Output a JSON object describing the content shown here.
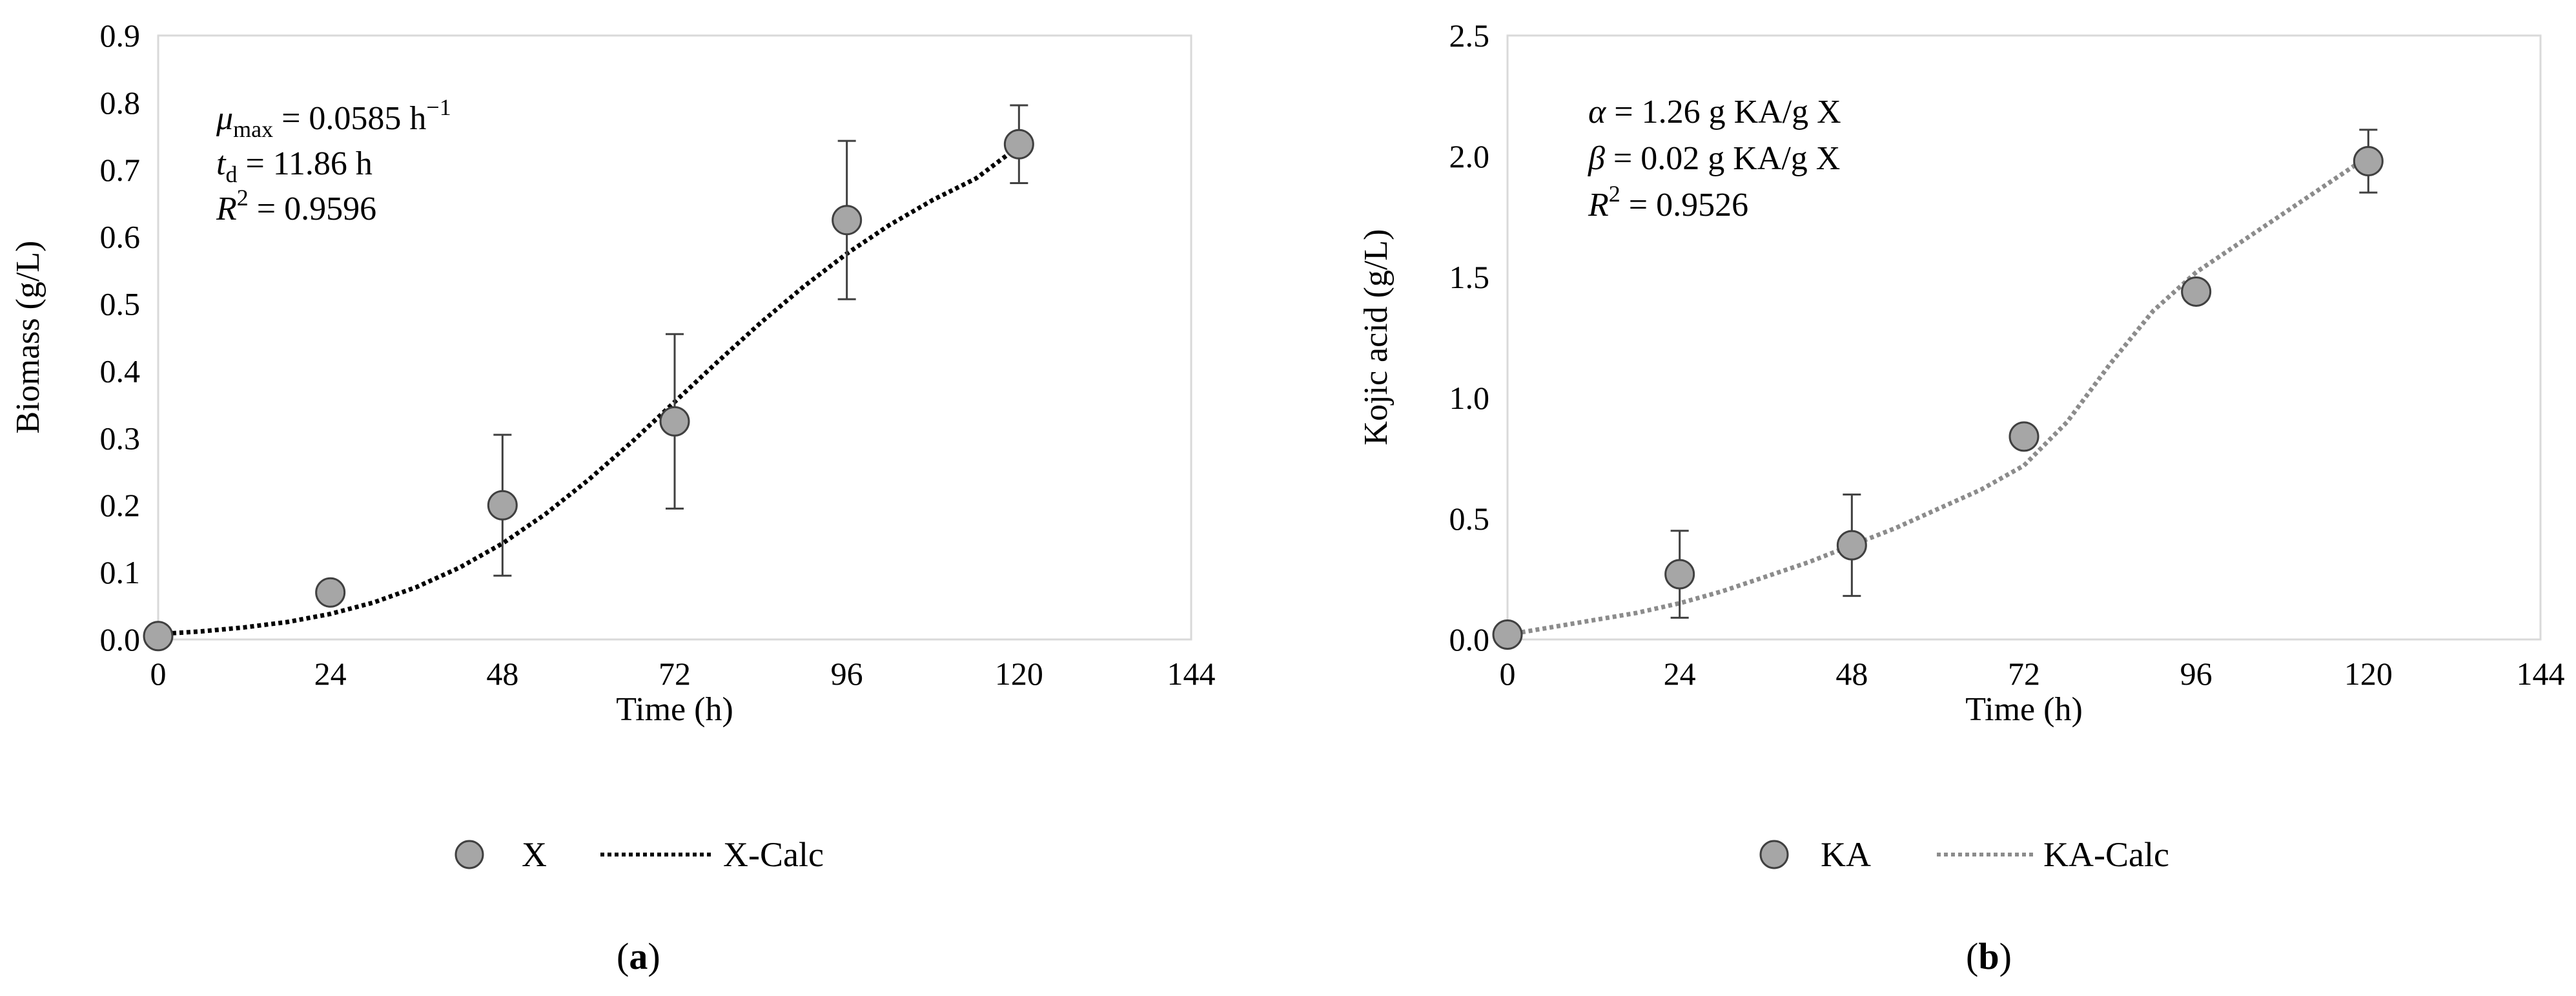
{
  "chart_data": [
    {
      "panel_label": "a",
      "type": "scatter",
      "xlabel": "Time (h)",
      "ylabel": "Biomass (g/L)",
      "xlim": [
        0,
        144
      ],
      "ylim": [
        0,
        0.9
      ],
      "xticks": [
        "0",
        "24",
        "48",
        "72",
        "96",
        "120",
        "144"
      ],
      "yticks": [
        "0.0",
        "0.1",
        "0.2",
        "0.3",
        "0.4",
        "0.5",
        "0.6",
        "0.7",
        "0.8",
        "0.9"
      ],
      "grid": false,
      "legend_position": "bottom",
      "annotations": {
        "line1_base": "μ",
        "line1_sub": "max",
        "line1_rest": " = 0.0585 h",
        "line1_sup": "−1",
        "line2_base": "t",
        "line2_sub": "d",
        "line2_rest": " = 11.86 h",
        "line3_base": "R",
        "line3_sup": "2",
        "line3_rest": " = 0.9596"
      },
      "series": [
        {
          "name": "X",
          "kind": "points",
          "color": "#a6a6a6",
          "x": [
            0,
            24,
            48,
            72,
            96,
            120
          ],
          "y": [
            0.005,
            0.07,
            0.2,
            0.325,
            0.625,
            0.738
          ],
          "err": [
            0,
            0,
            0.105,
            0.13,
            0.118,
            0.058
          ]
        },
        {
          "name": "X-Calc",
          "kind": "dotted-line",
          "color": "#000000",
          "x": [
            0,
            6,
            12,
            18,
            24,
            30,
            36,
            42,
            48,
            54,
            60,
            66,
            72,
            78,
            84,
            90,
            96,
            102,
            108,
            114,
            120
          ],
          "y": [
            0.008,
            0.012,
            0.018,
            0.026,
            0.038,
            0.055,
            0.078,
            0.107,
            0.143,
            0.187,
            0.238,
            0.294,
            0.354,
            0.414,
            0.472,
            0.526,
            0.575,
            0.618,
            0.655,
            0.687,
            0.735
          ]
        }
      ]
    },
    {
      "panel_label": "b",
      "type": "scatter",
      "xlabel": "Time (h)",
      "ylabel": "Kojic acid (g/L)",
      "xlim": [
        0,
        144
      ],
      "ylim": [
        0,
        2.5
      ],
      "xticks": [
        "0",
        "24",
        "48",
        "72",
        "96",
        "120",
        "144"
      ],
      "yticks": [
        "0.0",
        "0.5",
        "1.0",
        "1.5",
        "2.0",
        "2.5"
      ],
      "grid": false,
      "legend_position": "bottom",
      "annotations": {
        "line1_base": "α",
        "line1_rest": " = 1.26 g KA/g X",
        "line2_base": "β",
        "line2_rest": " = 0.02 g KA/g X",
        "line3_base": "R",
        "line3_sup": "2",
        "line3_rest": " = 0.9526"
      },
      "series": [
        {
          "name": "KA",
          "kind": "points",
          "color": "#a6a6a6",
          "x": [
            0,
            24,
            48,
            72,
            96,
            120
          ],
          "y": [
            0.02,
            0.27,
            0.39,
            0.84,
            1.44,
            1.98
          ],
          "err": [
            0,
            0.18,
            0.21,
            0,
            0,
            0.13
          ]
        },
        {
          "name": "KA-Calc",
          "kind": "dotted-line",
          "color": "#8c8c8c",
          "x": [
            0,
            6,
            12,
            18,
            24,
            30,
            36,
            42,
            48,
            54,
            60,
            66,
            72,
            78,
            84,
            90,
            96,
            102,
            108,
            114,
            120
          ],
          "y": [
            0.02,
            0.05,
            0.08,
            0.11,
            0.15,
            0.2,
            0.26,
            0.32,
            0.39,
            0.46,
            0.54,
            0.62,
            0.72,
            0.9,
            1.14,
            1.36,
            1.52,
            1.64,
            1.76,
            1.88,
            2.0
          ]
        }
      ]
    }
  ]
}
